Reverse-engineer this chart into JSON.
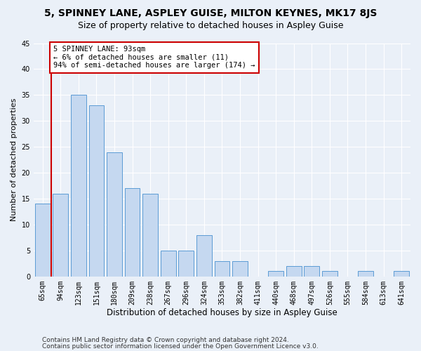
{
  "title1": "5, SPINNEY LANE, ASPLEY GUISE, MILTON KEYNES, MK17 8JS",
  "title2": "Size of property relative to detached houses in Aspley Guise",
  "xlabel": "Distribution of detached houses by size in Aspley Guise",
  "ylabel": "Number of detached properties",
  "categories": [
    "65sqm",
    "94sqm",
    "123sqm",
    "151sqm",
    "180sqm",
    "209sqm",
    "238sqm",
    "267sqm",
    "296sqm",
    "324sqm",
    "353sqm",
    "382sqm",
    "411sqm",
    "440sqm",
    "468sqm",
    "497sqm",
    "526sqm",
    "555sqm",
    "584sqm",
    "613sqm",
    "641sqm"
  ],
  "values": [
    14,
    16,
    35,
    33,
    24,
    17,
    16,
    5,
    5,
    8,
    3,
    3,
    0,
    1,
    2,
    2,
    1,
    0,
    1,
    0,
    1
  ],
  "bar_color": "#c5d8f0",
  "bar_edge_color": "#5b9bd5",
  "vline_x": 0.5,
  "vline_color": "#cc0000",
  "annotation_line1": "5 SPINNEY LANE: 93sqm",
  "annotation_line2": "← 6% of detached houses are smaller (11)",
  "annotation_line3": "94% of semi-detached houses are larger (174) →",
  "annotation_box_color": "#ffffff",
  "annotation_box_edge": "#cc0000",
  "ylim": [
    0,
    45
  ],
  "yticks": [
    0,
    5,
    10,
    15,
    20,
    25,
    30,
    35,
    40,
    45
  ],
  "bg_color": "#eaf0f8",
  "plot_bg": "#eaf0f8",
  "grid_color": "#ffffff",
  "footer1": "Contains HM Land Registry data © Crown copyright and database right 2024.",
  "footer2": "Contains public sector information licensed under the Open Government Licence v3.0.",
  "title1_fontsize": 10,
  "title2_fontsize": 9,
  "xlabel_fontsize": 8.5,
  "ylabel_fontsize": 8,
  "tick_fontsize": 7,
  "ann_fontsize": 7.5,
  "footer_fontsize": 6.5
}
